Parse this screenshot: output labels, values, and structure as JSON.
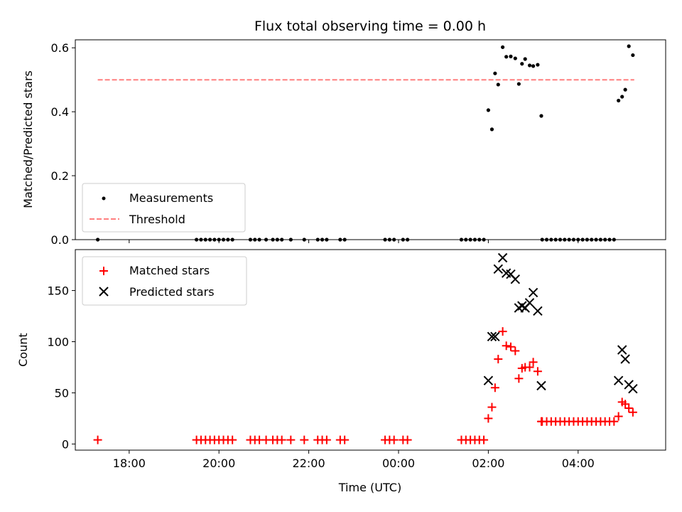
{
  "chart_data": [
    {
      "type": "scatter",
      "title": "Flux total observing time = 0.00 h",
      "xlabel": "",
      "ylabel": "Matched/Predicted stars",
      "xlim": [
        16.8,
        29.95
      ],
      "ylim": [
        0,
        0.625
      ],
      "x_ticks": [
        18,
        20,
        22,
        24,
        26,
        28
      ],
      "x_tick_labels": [],
      "y_ticks": [
        0.0,
        0.2,
        0.4,
        0.6
      ],
      "y_tick_labels": [
        "0.0",
        "0.2",
        "0.4",
        "0.6"
      ],
      "legend": {
        "position": "lower-left",
        "entries": [
          "Measurements",
          "Threshold"
        ]
      },
      "threshold": {
        "name": "Threshold",
        "value": 0.5,
        "x_range": [
          17.3,
          29.25
        ],
        "color": "#ff7f7f"
      },
      "series": [
        {
          "name": "Measurements",
          "marker": "dot",
          "color": "#000000",
          "points": [
            [
              17.3,
              0.0
            ],
            [
              19.5,
              0.0
            ],
            [
              19.6,
              0.0
            ],
            [
              19.7,
              0.0
            ],
            [
              19.8,
              0.0
            ],
            [
              19.9,
              0.0
            ],
            [
              20.0,
              0.0
            ],
            [
              20.1,
              0.0
            ],
            [
              20.2,
              0.0
            ],
            [
              20.3,
              0.0
            ],
            [
              20.7,
              0.0
            ],
            [
              20.8,
              0.0
            ],
            [
              20.9,
              0.0
            ],
            [
              21.05,
              0.0
            ],
            [
              21.2,
              0.0
            ],
            [
              21.3,
              0.0
            ],
            [
              21.4,
              0.0
            ],
            [
              21.6,
              0.0
            ],
            [
              21.9,
              0.0
            ],
            [
              22.2,
              0.0
            ],
            [
              22.3,
              0.0
            ],
            [
              22.4,
              0.0
            ],
            [
              22.7,
              0.0
            ],
            [
              22.8,
              0.0
            ],
            [
              23.7,
              0.0
            ],
            [
              23.8,
              0.0
            ],
            [
              23.9,
              0.0
            ],
            [
              24.1,
              0.0
            ],
            [
              24.2,
              0.0
            ],
            [
              25.4,
              0.0
            ],
            [
              25.5,
              0.0
            ],
            [
              25.6,
              0.0
            ],
            [
              25.7,
              0.0
            ],
            [
              25.8,
              0.0
            ],
            [
              25.9,
              0.0
            ],
            [
              26.0,
              0.405
            ],
            [
              26.08,
              0.345
            ],
            [
              26.15,
              0.52
            ],
            [
              26.22,
              0.485
            ],
            [
              26.32,
              0.602
            ],
            [
              26.4,
              0.572
            ],
            [
              26.5,
              0.573
            ],
            [
              26.6,
              0.567
            ],
            [
              26.68,
              0.487
            ],
            [
              26.75,
              0.55
            ],
            [
              26.82,
              0.565
            ],
            [
              26.92,
              0.545
            ],
            [
              27.0,
              0.543
            ],
            [
              27.1,
              0.547
            ],
            [
              27.18,
              0.387
            ],
            [
              27.2,
              0.0
            ],
            [
              27.3,
              0.0
            ],
            [
              27.4,
              0.0
            ],
            [
              27.5,
              0.0
            ],
            [
              27.6,
              0.0
            ],
            [
              27.7,
              0.0
            ],
            [
              27.8,
              0.0
            ],
            [
              27.9,
              0.0
            ],
            [
              28.0,
              0.0
            ],
            [
              28.1,
              0.0
            ],
            [
              28.2,
              0.0
            ],
            [
              28.3,
              0.0
            ],
            [
              28.4,
              0.0
            ],
            [
              28.5,
              0.0
            ],
            [
              28.6,
              0.0
            ],
            [
              28.7,
              0.0
            ],
            [
              28.8,
              0.0
            ],
            [
              28.9,
              0.435
            ],
            [
              28.98,
              0.447
            ],
            [
              29.05,
              0.469
            ],
            [
              29.13,
              0.605
            ],
            [
              29.22,
              0.577
            ]
          ]
        }
      ]
    },
    {
      "type": "scatter",
      "title": "",
      "xlabel": "Time (UTC)",
      "ylabel": "Count",
      "xlim": [
        16.8,
        29.95
      ],
      "ylim": [
        -6,
        190
      ],
      "x_ticks": [
        18,
        20,
        22,
        24,
        26,
        28
      ],
      "x_tick_labels": [
        "18:00",
        "20:00",
        "22:00",
        "00:00",
        "02:00",
        "04:00"
      ],
      "y_ticks": [
        0,
        50,
        100,
        150
      ],
      "y_tick_labels": [
        "0",
        "50",
        "100",
        "150"
      ],
      "legend": {
        "position": "upper-left",
        "entries": [
          "Matched stars",
          "Predicted stars"
        ]
      },
      "series": [
        {
          "name": "Matched stars",
          "marker": "plus",
          "color": "#ff0000",
          "points": [
            [
              17.3,
              4
            ],
            [
              19.5,
              4
            ],
            [
              19.6,
              4
            ],
            [
              19.7,
              4
            ],
            [
              19.8,
              4
            ],
            [
              19.9,
              4
            ],
            [
              20.0,
              4
            ],
            [
              20.1,
              4
            ],
            [
              20.2,
              4
            ],
            [
              20.3,
              4
            ],
            [
              20.7,
              4
            ],
            [
              20.8,
              4
            ],
            [
              20.9,
              4
            ],
            [
              21.05,
              4
            ],
            [
              21.2,
              4
            ],
            [
              21.3,
              4
            ],
            [
              21.4,
              4
            ],
            [
              21.6,
              4
            ],
            [
              21.9,
              4
            ],
            [
              22.2,
              4
            ],
            [
              22.3,
              4
            ],
            [
              22.4,
              4
            ],
            [
              22.7,
              4
            ],
            [
              22.8,
              4
            ],
            [
              23.7,
              4
            ],
            [
              23.8,
              4
            ],
            [
              23.9,
              4
            ],
            [
              24.1,
              4
            ],
            [
              24.2,
              4
            ],
            [
              25.4,
              4
            ],
            [
              25.5,
              4
            ],
            [
              25.6,
              4
            ],
            [
              25.7,
              4
            ],
            [
              25.8,
              4
            ],
            [
              25.9,
              4
            ],
            [
              26.0,
              25
            ],
            [
              26.08,
              36
            ],
            [
              26.15,
              55
            ],
            [
              26.22,
              83
            ],
            [
              26.32,
              110
            ],
            [
              26.4,
              96
            ],
            [
              26.5,
              95
            ],
            [
              26.6,
              91
            ],
            [
              26.68,
              64
            ],
            [
              26.75,
              74
            ],
            [
              26.82,
              75
            ],
            [
              26.92,
              75
            ],
            [
              27.0,
              80
            ],
            [
              27.1,
              71
            ],
            [
              27.18,
              22
            ],
            [
              27.2,
              22
            ],
            [
              27.3,
              22
            ],
            [
              27.4,
              22
            ],
            [
              27.5,
              22
            ],
            [
              27.6,
              22
            ],
            [
              27.7,
              22
            ],
            [
              27.8,
              22
            ],
            [
              27.9,
              22
            ],
            [
              28.0,
              22
            ],
            [
              28.1,
              22
            ],
            [
              28.2,
              22
            ],
            [
              28.3,
              22
            ],
            [
              28.4,
              22
            ],
            [
              28.5,
              22
            ],
            [
              28.6,
              22
            ],
            [
              28.7,
              22
            ],
            [
              28.8,
              22
            ],
            [
              28.9,
              27
            ],
            [
              28.98,
              41
            ],
            [
              29.05,
              39
            ],
            [
              29.13,
              35
            ],
            [
              29.22,
              31
            ]
          ]
        },
        {
          "name": "Predicted stars",
          "marker": "x",
          "color": "#000000",
          "points": [
            [
              26.0,
              62
            ],
            [
              26.08,
              105
            ],
            [
              26.15,
              105
            ],
            [
              26.22,
              171
            ],
            [
              26.32,
              182
            ],
            [
              26.4,
              167
            ],
            [
              26.5,
              166
            ],
            [
              26.6,
              161
            ],
            [
              26.68,
              133
            ],
            [
              26.75,
              135
            ],
            [
              26.82,
              133
            ],
            [
              26.92,
              138
            ],
            [
              27.0,
              148
            ],
            [
              27.1,
              130
            ],
            [
              27.18,
              57
            ],
            [
              28.9,
              62
            ],
            [
              28.98,
              92
            ],
            [
              29.05,
              83
            ],
            [
              29.13,
              58
            ],
            [
              29.22,
              54
            ]
          ]
        }
      ]
    }
  ]
}
